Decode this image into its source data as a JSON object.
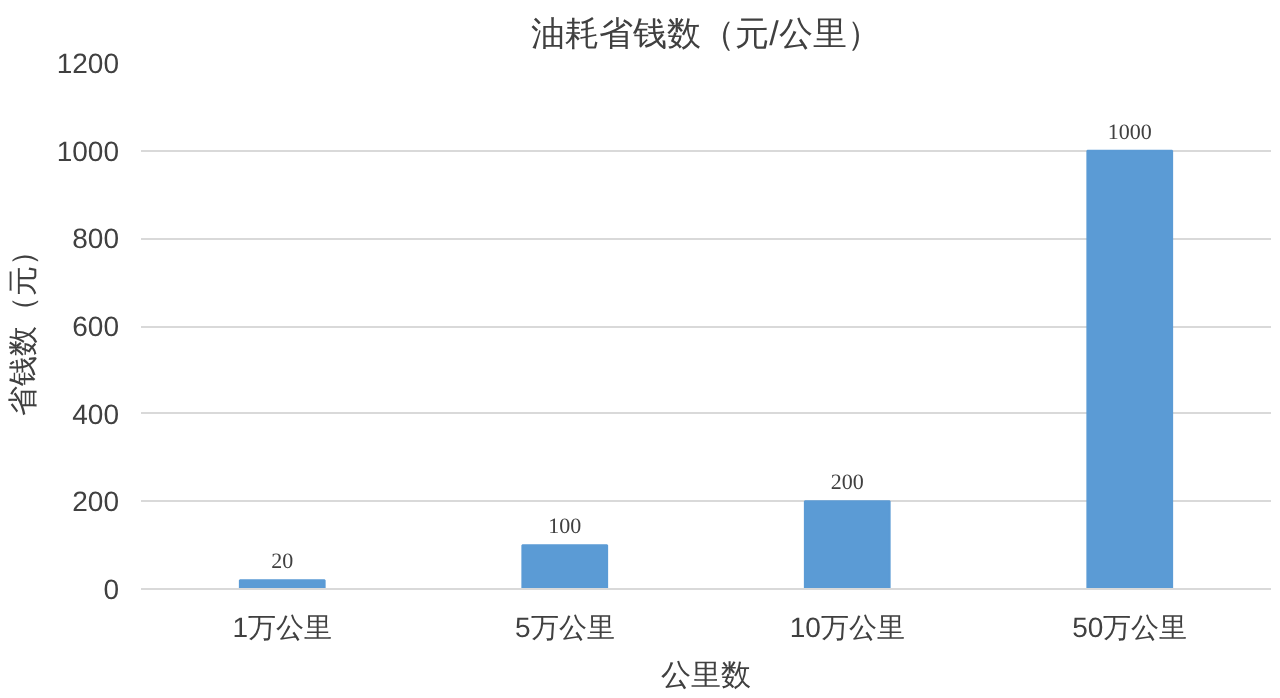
{
  "chart_data": {
    "type": "bar",
    "title": "油耗省钱数（元/公里）",
    "xlabel": "公里数",
    "ylabel": "省钱数（元）",
    "categories": [
      "1万公里",
      "5万公里",
      "10万公里",
      "50万公里"
    ],
    "values": [
      20,
      100,
      200,
      1000
    ],
    "color": "#5b9bd5",
    "ylim": [
      0,
      1200
    ],
    "yticks": [
      0,
      200,
      400,
      600,
      800,
      1000,
      1200
    ],
    "grid": "y",
    "data_labels": true
  }
}
